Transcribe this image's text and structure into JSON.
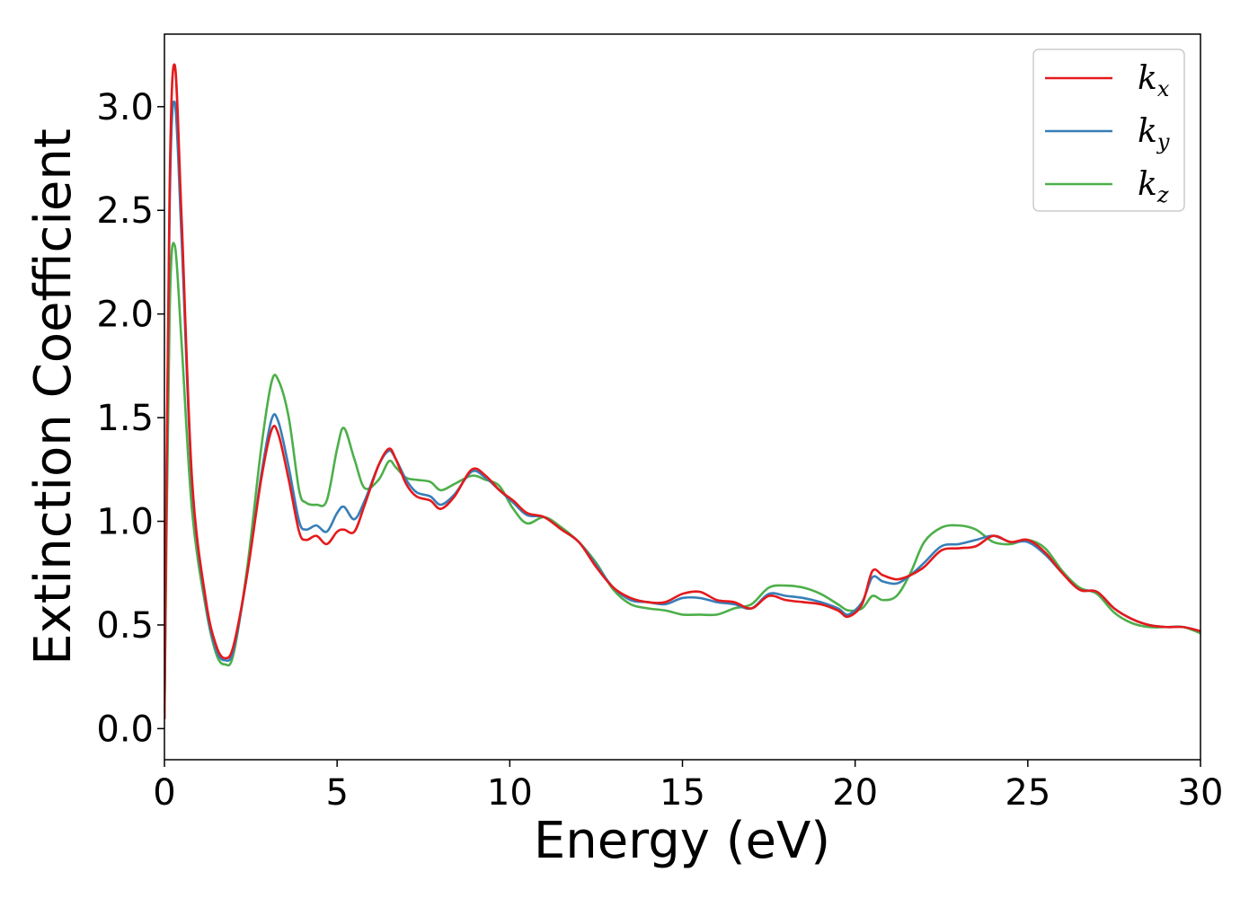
{
  "chart_data": {
    "type": "line",
    "xlabel": "Energy (eV)",
    "ylabel": "Extinction Coefficient",
    "xlim": [
      0,
      30
    ],
    "ylim": [
      -0.15,
      3.35
    ],
    "xticks": [
      0,
      5,
      10,
      15,
      20,
      25,
      30
    ],
    "xtick_labels": [
      "0",
      "5",
      "10",
      "15",
      "20",
      "25",
      "30"
    ],
    "yticks": [
      0.0,
      0.5,
      1.0,
      1.5,
      2.0,
      2.5,
      3.0
    ],
    "ytick_labels": [
      "0.0",
      "0.5",
      "1.0",
      "1.5",
      "2.0",
      "2.5",
      "3.0"
    ],
    "grid": false,
    "legend_position": "top-right",
    "series": [
      {
        "name": "k",
        "subscript": "x",
        "color": "#e41a1c",
        "x": [
          0,
          0.15,
          0.3,
          0.5,
          0.8,
          1.2,
          1.5,
          1.75,
          2.0,
          2.4,
          2.8,
          3.1,
          3.3,
          3.6,
          3.9,
          4.1,
          4.4,
          4.7,
          5.0,
          5.2,
          5.5,
          5.8,
          6.2,
          6.5,
          6.7,
          7.0,
          7.3,
          7.7,
          8.0,
          8.4,
          8.9,
          9.3,
          9.7,
          10.1,
          10.5,
          11.0,
          11.5,
          12.0,
          12.5,
          13.0,
          13.5,
          14.0,
          14.5,
          15.0,
          15.5,
          16.0,
          16.5,
          17.0,
          17.5,
          18.0,
          18.5,
          19.0,
          19.5,
          19.8,
          20.2,
          20.5,
          20.8,
          21.2,
          21.6,
          22.0,
          22.5,
          23.0,
          23.5,
          24.0,
          24.5,
          25.0,
          25.5,
          26.0,
          26.5,
          27.0,
          27.5,
          28.0,
          28.5,
          29.0,
          29.5,
          30.0
        ],
        "y": [
          0.05,
          2.6,
          3.2,
          2.45,
          1.2,
          0.62,
          0.4,
          0.34,
          0.4,
          0.75,
          1.2,
          1.44,
          1.42,
          1.2,
          0.95,
          0.91,
          0.93,
          0.89,
          0.95,
          0.96,
          0.95,
          1.08,
          1.27,
          1.35,
          1.3,
          1.18,
          1.12,
          1.1,
          1.06,
          1.12,
          1.25,
          1.22,
          1.15,
          1.1,
          1.04,
          1.02,
          0.96,
          0.9,
          0.78,
          0.68,
          0.63,
          0.61,
          0.61,
          0.65,
          0.66,
          0.62,
          0.61,
          0.58,
          0.64,
          0.62,
          0.61,
          0.6,
          0.57,
          0.54,
          0.6,
          0.76,
          0.74,
          0.72,
          0.74,
          0.78,
          0.86,
          0.87,
          0.88,
          0.93,
          0.9,
          0.91,
          0.85,
          0.75,
          0.67,
          0.66,
          0.58,
          0.53,
          0.5,
          0.49,
          0.49,
          0.47
        ]
      },
      {
        "name": "k",
        "subscript": "y",
        "color": "#377eb8",
        "x": [
          0,
          0.15,
          0.3,
          0.5,
          0.8,
          1.2,
          1.5,
          1.75,
          2.0,
          2.4,
          2.8,
          3.1,
          3.3,
          3.6,
          3.9,
          4.1,
          4.4,
          4.7,
          5.0,
          5.2,
          5.5,
          5.8,
          6.2,
          6.5,
          6.7,
          7.0,
          7.3,
          7.7,
          8.0,
          8.4,
          8.9,
          9.3,
          9.7,
          10.1,
          10.5,
          11.0,
          11.5,
          12.0,
          12.5,
          13.0,
          13.5,
          14.0,
          14.5,
          15.0,
          15.5,
          16.0,
          16.5,
          17.0,
          17.5,
          18.0,
          18.5,
          19.0,
          19.5,
          19.8,
          20.2,
          20.5,
          20.8,
          21.2,
          21.6,
          22.0,
          22.5,
          23.0,
          23.5,
          24.0,
          24.5,
          25.0,
          25.5,
          26.0,
          26.5,
          27.0,
          27.5,
          28.0,
          28.5,
          29.0,
          29.5,
          30.0
        ],
        "y": [
          0.05,
          2.5,
          3.02,
          2.35,
          1.18,
          0.6,
          0.38,
          0.33,
          0.38,
          0.75,
          1.22,
          1.49,
          1.48,
          1.26,
          1.0,
          0.96,
          0.98,
          0.95,
          1.04,
          1.07,
          1.01,
          1.1,
          1.27,
          1.34,
          1.3,
          1.2,
          1.14,
          1.12,
          1.08,
          1.13,
          1.24,
          1.21,
          1.15,
          1.09,
          1.03,
          1.02,
          0.96,
          0.9,
          0.79,
          0.68,
          0.62,
          0.61,
          0.6,
          0.63,
          0.63,
          0.61,
          0.6,
          0.58,
          0.65,
          0.64,
          0.63,
          0.61,
          0.58,
          0.55,
          0.61,
          0.73,
          0.71,
          0.7,
          0.74,
          0.8,
          0.88,
          0.89,
          0.91,
          0.93,
          0.9,
          0.9,
          0.84,
          0.75,
          0.67,
          0.66,
          0.58,
          0.53,
          0.5,
          0.49,
          0.49,
          0.47
        ]
      },
      {
        "name": "k",
        "subscript": "z",
        "color": "#4daf4a",
        "x": [
          0,
          0.15,
          0.3,
          0.5,
          0.8,
          1.2,
          1.5,
          1.75,
          2.0,
          2.4,
          2.8,
          3.1,
          3.3,
          3.6,
          3.9,
          4.1,
          4.4,
          4.7,
          5.0,
          5.2,
          5.5,
          5.8,
          6.2,
          6.5,
          6.7,
          7.0,
          7.3,
          7.7,
          8.0,
          8.4,
          8.9,
          9.3,
          9.7,
          10.1,
          10.5,
          11.0,
          11.5,
          12.0,
          12.5,
          13.0,
          13.5,
          14.0,
          14.5,
          15.0,
          15.5,
          16.0,
          16.5,
          17.0,
          17.5,
          18.0,
          18.5,
          19.0,
          19.5,
          19.8,
          20.2,
          20.5,
          20.8,
          21.2,
          21.6,
          22.0,
          22.5,
          23.0,
          23.5,
          24.0,
          24.5,
          25.0,
          25.5,
          26.0,
          26.5,
          27.0,
          27.5,
          28.0,
          28.5,
          29.0,
          29.5,
          30.0
        ],
        "y": [
          0.05,
          2.0,
          2.33,
          1.85,
          1.05,
          0.58,
          0.36,
          0.31,
          0.36,
          0.78,
          1.35,
          1.67,
          1.68,
          1.5,
          1.15,
          1.09,
          1.08,
          1.1,
          1.35,
          1.45,
          1.3,
          1.16,
          1.2,
          1.29,
          1.26,
          1.21,
          1.2,
          1.19,
          1.15,
          1.18,
          1.22,
          1.2,
          1.17,
          1.06,
          0.99,
          1.02,
          0.97,
          0.9,
          0.8,
          0.67,
          0.6,
          0.58,
          0.57,
          0.55,
          0.55,
          0.55,
          0.58,
          0.6,
          0.68,
          0.69,
          0.68,
          0.65,
          0.6,
          0.57,
          0.58,
          0.64,
          0.62,
          0.64,
          0.75,
          0.9,
          0.97,
          0.98,
          0.96,
          0.9,
          0.89,
          0.91,
          0.87,
          0.76,
          0.68,
          0.65,
          0.56,
          0.51,
          0.49,
          0.49,
          0.49,
          0.46
        ]
      }
    ]
  }
}
